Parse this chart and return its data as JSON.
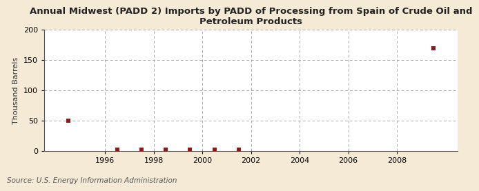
{
  "title": "Annual Midwest (PADD 2) Imports by PADD of Processing from Spain of Crude Oil and\nPetroleum Products",
  "ylabel": "Thousand Barrels",
  "source": "Source: U.S. Energy Information Administration",
  "fig_bg_color": "#f5ead5",
  "plot_bg_color": "#ffffff",
  "data_points": [
    {
      "year": 1994.5,
      "value": 50
    },
    {
      "year": 1996.5,
      "value": 2
    },
    {
      "year": 1997.5,
      "value": 2
    },
    {
      "year": 1998.5,
      "value": 2
    },
    {
      "year": 1999.5,
      "value": 2
    },
    {
      "year": 2000.5,
      "value": 2
    },
    {
      "year": 2001.5,
      "value": 2
    },
    {
      "year": 2009.5,
      "value": 170
    }
  ],
  "marker_color": "#8b1a1a",
  "marker_size": 16,
  "marker_style": "s",
  "xlim": [
    1993.5,
    2010.5
  ],
  "ylim": [
    0,
    200
  ],
  "yticks": [
    0,
    50,
    100,
    150,
    200
  ],
  "xticks": [
    1996,
    1998,
    2000,
    2002,
    2004,
    2006,
    2008
  ],
  "grid_color": "#aaaaaa",
  "grid_style": "--",
  "title_fontsize": 9.5,
  "label_fontsize": 8,
  "tick_fontsize": 8,
  "source_fontsize": 7.5
}
